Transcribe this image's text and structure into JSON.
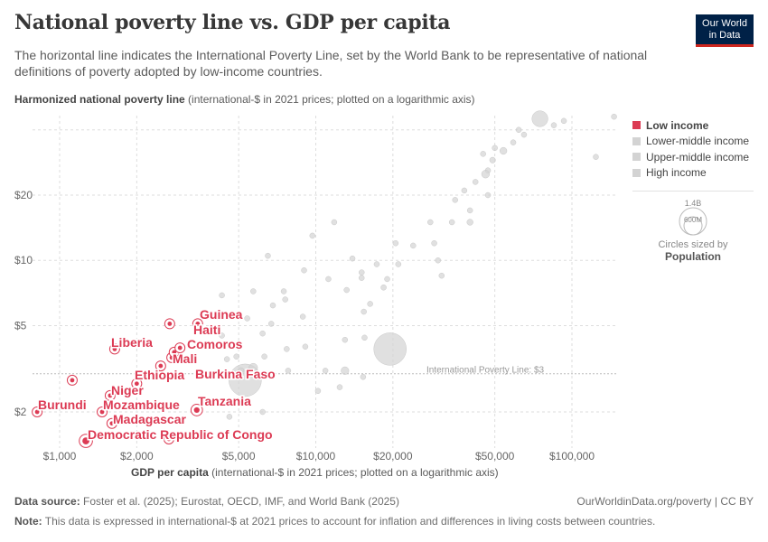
{
  "title": "National poverty line vs. GDP per capita",
  "subtitle": "The horizontal line indicates the International Poverty Line, set by the World Bank to be representative of national definitions of poverty adopted by low-income countries.",
  "logo": {
    "line1": "Our World",
    "line2": "in Data"
  },
  "y_axis": {
    "label_bold": "Harmonized national poverty line",
    "label_rest": " (international-$ in 2021 prices; plotted on a logarithmic axis)"
  },
  "x_axis": {
    "label_bold": "GDP per capita",
    "label_rest": " (international-$ in 2021 prices; plotted on a logarithmic axis)"
  },
  "legend": {
    "items": [
      {
        "label": "Low income",
        "color": "#dc3b54",
        "active": true
      },
      {
        "label": "Lower-middle income",
        "color": "#d3d3d3",
        "active": false
      },
      {
        "label": "Upper-middle income",
        "color": "#d3d3d3",
        "active": false
      },
      {
        "label": "High income",
        "color": "#d3d3d3",
        "active": false
      }
    ],
    "size_big": "1.4B",
    "size_small": "600M",
    "size_caption": "Circles sized by",
    "size_variable": "Population"
  },
  "footer": {
    "source_label": "Data source:",
    "source": " Foster et al. (2025); Eurostat, OECD, IMF, and World Bank (2025)",
    "url": "OurWorldinData.org/poverty | CC BY",
    "note_label": "Note:",
    "note": " This data is expressed in international-$ at 2021 prices to account for inflation and differences in living costs between countries."
  },
  "chart_data": {
    "type": "scatter",
    "x_scale": "log",
    "y_scale": "log",
    "xlim": [
      780,
      150000
    ],
    "ylim": [
      1.35,
      50
    ],
    "grid": true,
    "x_ticks": [
      {
        "v": 1000,
        "label": "$1,000"
      },
      {
        "v": 2000,
        "label": "$2,000"
      },
      {
        "v": 5000,
        "label": "$5,000"
      },
      {
        "v": 10000,
        "label": "$10,000"
      },
      {
        "v": 20000,
        "label": "$20,000"
      },
      {
        "v": 50000,
        "label": "$50,000"
      },
      {
        "v": 100000,
        "label": "$100,000"
      }
    ],
    "y_ticks": [
      {
        "v": 2,
        "label": "$2"
      },
      {
        "v": 5,
        "label": "$5"
      },
      {
        "v": 10,
        "label": "$10"
      },
      {
        "v": 20,
        "label": "$20"
      }
    ],
    "reference_line": {
      "value": 3,
      "label": "International Poverty Line: $3"
    },
    "highlighted_color": "#dc3b54",
    "muted_color": "#d3d3d3",
    "low_income": [
      {
        "name": "Burundi",
        "x": 817,
        "y": 2.0,
        "pop": 13
      },
      {
        "name": "",
        "x": 1120,
        "y": 2.8,
        "pop": 6
      },
      {
        "name": "Democratic Republic of Congo",
        "x": 1266,
        "y": 1.47,
        "pop": 100
      },
      {
        "name": "Liberia",
        "x": 1640,
        "y": 3.9,
        "pop": 5
      },
      {
        "name": "Niger",
        "x": 1575,
        "y": 2.38,
        "pop": 26
      },
      {
        "name": "Mozambique",
        "x": 1465,
        "y": 2.0,
        "pop": 33
      },
      {
        "name": "Madagascar",
        "x": 1600,
        "y": 1.77,
        "pop": 30
      },
      {
        "name": "Ethiopia",
        "x": 2000,
        "y": 2.7,
        "pop": 10
      },
      {
        "name": "Burkina Faso",
        "x": 2480,
        "y": 3.26,
        "pop": 8
      },
      {
        "name": "Mali",
        "x": 2740,
        "y": 3.56,
        "pop": 8
      },
      {
        "name": "Comoros",
        "x": 2800,
        "y": 3.77,
        "pop": 1
      },
      {
        "name": "Haiti",
        "x": 2950,
        "y": 3.95,
        "pop": 1
      },
      {
        "name": "",
        "x": 2690,
        "y": 5.1,
        "pop": 8
      },
      {
        "name": "Guinea",
        "x": 3460,
        "y": 5.1,
        "pop": 6
      },
      {
        "name": "Tanzania",
        "x": 3430,
        "y": 2.04,
        "pop": 65
      },
      {
        "name": "",
        "x": 2670,
        "y": 1.5,
        "pop": 20
      }
    ],
    "other": [
      {
        "x": 75000,
        "y": 45,
        "pop": 335
      },
      {
        "x": 146000,
        "y": 46,
        "pop": 5
      },
      {
        "x": 124000,
        "y": 30,
        "pop": 5
      },
      {
        "x": 93000,
        "y": 44,
        "pop": 5
      },
      {
        "x": 85000,
        "y": 42,
        "pop": 10
      },
      {
        "x": 65000,
        "y": 38,
        "pop": 10
      },
      {
        "x": 62000,
        "y": 40,
        "pop": 10
      },
      {
        "x": 59000,
        "y": 35,
        "pop": 5
      },
      {
        "x": 54000,
        "y": 32,
        "pop": 65
      },
      {
        "x": 50000,
        "y": 33,
        "pop": 5
      },
      {
        "x": 49000,
        "y": 29,
        "pop": 45
      },
      {
        "x": 47000,
        "y": 26,
        "pop": 10
      },
      {
        "x": 46000,
        "y": 25,
        "pop": 83
      },
      {
        "x": 42000,
        "y": 23,
        "pop": 20
      },
      {
        "x": 47000,
        "y": 20,
        "pop": 10
      },
      {
        "x": 45000,
        "y": 31,
        "pop": 5
      },
      {
        "x": 40000,
        "y": 17,
        "pop": 12
      },
      {
        "x": 38000,
        "y": 21,
        "pop": 5
      },
      {
        "x": 40000,
        "y": 15,
        "pop": 50
      },
      {
        "x": 35000,
        "y": 19,
        "pop": 5
      },
      {
        "x": 29000,
        "y": 12,
        "pop": 10
      },
      {
        "x": 28000,
        "y": 15,
        "pop": 5
      },
      {
        "x": 34000,
        "y": 15,
        "pop": 5
      },
      {
        "x": 21000,
        "y": 9.6,
        "pop": 40
      },
      {
        "x": 20500,
        "y": 12,
        "pop": 5
      },
      {
        "x": 30000,
        "y": 10,
        "pop": 10
      },
      {
        "x": 31000,
        "y": 8.5,
        "pop": 25
      },
      {
        "x": 18400,
        "y": 7.5,
        "pop": 40
      },
      {
        "x": 19000,
        "y": 8.2,
        "pop": 10
      },
      {
        "x": 16300,
        "y": 6.3,
        "pop": 20
      },
      {
        "x": 15400,
        "y": 5.8,
        "pop": 10
      },
      {
        "x": 15100,
        "y": 8.3,
        "pop": 5
      },
      {
        "x": 13200,
        "y": 7.3,
        "pop": 5
      },
      {
        "x": 11200,
        "y": 8.2,
        "pop": 5
      },
      {
        "x": 11800,
        "y": 15,
        "pop": 5
      },
      {
        "x": 9700,
        "y": 13,
        "pop": 5
      },
      {
        "x": 9000,
        "y": 9.0,
        "pop": 5
      },
      {
        "x": 6500,
        "y": 10.5,
        "pop": 5
      },
      {
        "x": 5700,
        "y": 7.2,
        "pop": 5
      },
      {
        "x": 7500,
        "y": 7.2,
        "pop": 10
      },
      {
        "x": 7700,
        "y": 3.9,
        "pop": 30
      },
      {
        "x": 9100,
        "y": 4.0,
        "pop": 10
      },
      {
        "x": 13000,
        "y": 4.3,
        "pop": 20
      },
      {
        "x": 15500,
        "y": 4.4,
        "pop": 10
      },
      {
        "x": 19500,
        "y": 3.9,
        "pop": 1400
      },
      {
        "x": 13000,
        "y": 3.1,
        "pop": 80
      },
      {
        "x": 10900,
        "y": 3.1,
        "pop": 5
      },
      {
        "x": 12400,
        "y": 2.6,
        "pop": 5
      },
      {
        "x": 15300,
        "y": 2.9,
        "pop": 5
      },
      {
        "x": 10200,
        "y": 2.5,
        "pop": 5
      },
      {
        "x": 7800,
        "y": 3.1,
        "pop": 10
      },
      {
        "x": 6300,
        "y": 3.6,
        "pop": 5
      },
      {
        "x": 6200,
        "y": 4.6,
        "pop": 5
      },
      {
        "x": 5300,
        "y": 2.8,
        "pop": 1400
      },
      {
        "x": 5700,
        "y": 3.2,
        "pop": 100
      },
      {
        "x": 5100,
        "y": 3.1,
        "pop": 50
      },
      {
        "x": 4900,
        "y": 3.6,
        "pop": 5
      },
      {
        "x": 4500,
        "y": 3.5,
        "pop": 5
      },
      {
        "x": 4300,
        "y": 4.5,
        "pop": 5
      },
      {
        "x": 4300,
        "y": 6.9,
        "pop": 5
      },
      {
        "x": 6800,
        "y": 6.2,
        "pop": 5
      },
      {
        "x": 7600,
        "y": 6.6,
        "pop": 5
      },
      {
        "x": 6200,
        "y": 2.0,
        "pop": 5
      },
      {
        "x": 4600,
        "y": 1.9,
        "pop": 5
      },
      {
        "x": 5400,
        "y": 5.4,
        "pop": 5
      },
      {
        "x": 6700,
        "y": 5.1,
        "pop": 5
      },
      {
        "x": 8900,
        "y": 5.5,
        "pop": 5
      },
      {
        "x": 24000,
        "y": 11.7,
        "pop": 5
      },
      {
        "x": 15100,
        "y": 8.8,
        "pop": 10
      },
      {
        "x": 17300,
        "y": 9.6,
        "pop": 5
      },
      {
        "x": 13900,
        "y": 10.2,
        "pop": 5
      }
    ]
  }
}
